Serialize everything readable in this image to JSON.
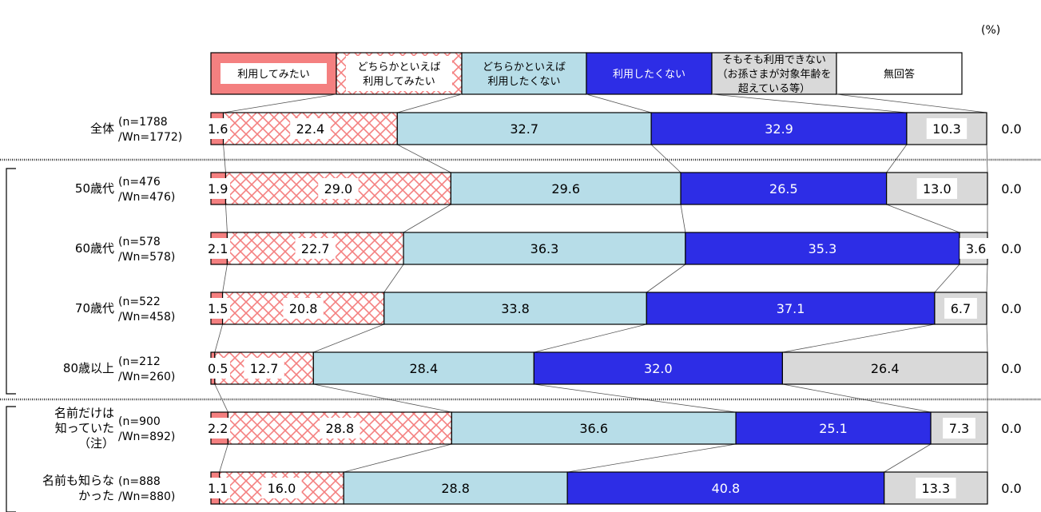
{
  "chart_data": {
    "type": "bar",
    "stacked": true,
    "orientation": "horizontal",
    "percent_stacked": true,
    "unit": "(%)",
    "series": [
      {
        "name": [
          "利用してみたい"
        ],
        "color": "#f48080",
        "pattern": "solid"
      },
      {
        "name": [
          "どちらかといえば",
          "利用してみたい"
        ],
        "color": "#f48080",
        "pattern": "crosshatch"
      },
      {
        "name": [
          "どちらかといえば",
          "利用したくない"
        ],
        "color": "#b7dde8",
        "pattern": "solid"
      },
      {
        "name": [
          "利用したくない"
        ],
        "color": "#2d2de6",
        "pattern": "solid"
      },
      {
        "name": [
          "そもそも利用できない",
          "（お孫さまが対象年齢を",
          "超えている等）"
        ],
        "color": "#d9d9d9",
        "pattern": "solid"
      },
      {
        "name": [
          "無回答"
        ],
        "color": "#ffffff",
        "pattern": "solid"
      }
    ],
    "rows": [
      {
        "label": [
          "全体"
        ],
        "n": [
          "(n=1788",
          "/Wn=1772)"
        ],
        "values": [
          1.6,
          22.4,
          32.7,
          32.9,
          10.3,
          0.0
        ]
      },
      {
        "label": [
          "50歳代"
        ],
        "n": [
          "(n=476",
          "/Wn=476)"
        ],
        "values": [
          1.9,
          29.0,
          29.6,
          26.5,
          13.0,
          0.0
        ]
      },
      {
        "label": [
          "60歳代"
        ],
        "n": [
          "(n=578",
          "/Wn=578)"
        ],
        "values": [
          2.1,
          22.7,
          36.3,
          35.3,
          3.6,
          0.0
        ]
      },
      {
        "label": [
          "70歳代"
        ],
        "n": [
          "(n=522",
          "/Wn=458)"
        ],
        "values": [
          1.5,
          20.8,
          33.8,
          37.1,
          6.7,
          0.0
        ]
      },
      {
        "label": [
          "80歳以上"
        ],
        "n": [
          "(n=212",
          "/Wn=260)"
        ],
        "values": [
          0.5,
          12.7,
          28.4,
          32.0,
          26.4,
          0.0
        ]
      },
      {
        "label": [
          "名前だけは",
          "知っていた",
          "（注）"
        ],
        "n": [
          "(n=900",
          "/Wn=892)"
        ],
        "values": [
          2.2,
          28.8,
          36.6,
          25.1,
          7.3,
          0.0
        ]
      },
      {
        "label": [
          "名前も知らな",
          "かった"
        ],
        "n": [
          "(n=888",
          "/Wn=880)"
        ],
        "values": [
          1.1,
          16.0,
          28.8,
          40.8,
          13.3,
          0.0
        ]
      }
    ],
    "groups": [
      {
        "rows": [
          1,
          2,
          3,
          4
        ]
      },
      {
        "rows": [
          5,
          6
        ]
      }
    ],
    "xlim": [
      0,
      100
    ],
    "grid": false,
    "legend_position": "top"
  }
}
